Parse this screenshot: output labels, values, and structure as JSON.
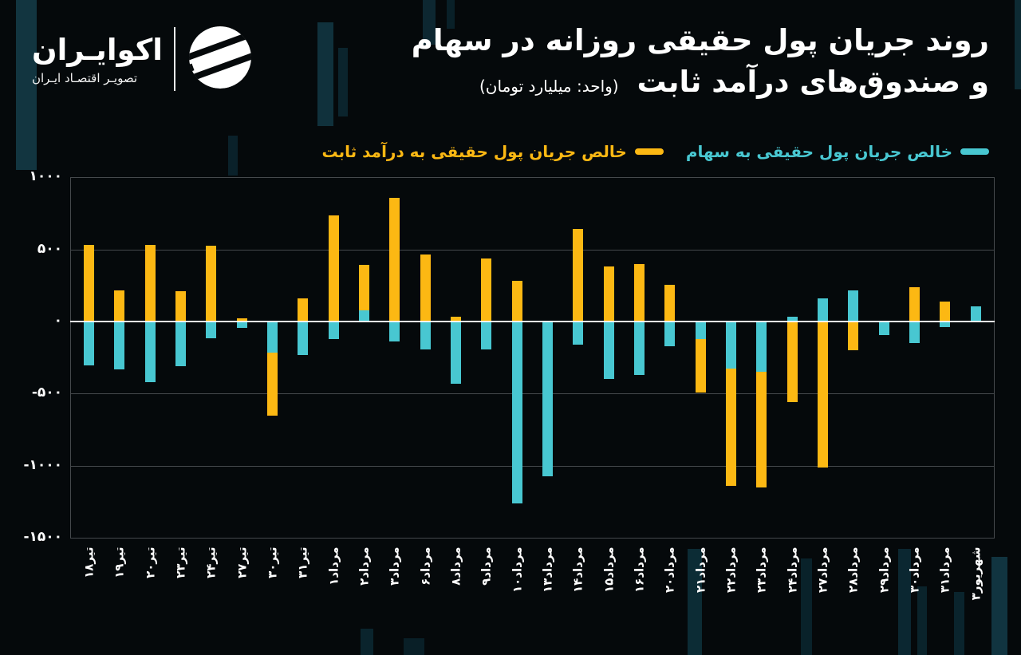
{
  "brand": {
    "name": "اکوایـران",
    "tagline": "تصویـر اقتصـاد ایـران"
  },
  "title": {
    "line1": "روند جریان پول حقیقی روزانه در سهام",
    "line2": "و صندوق‌های درآمد ثابت",
    "unit": "(واحد: میلیارد تومان)"
  },
  "legend": [
    {
      "label": "خالص جریان پول حقیقی به سهام",
      "color": "#48c7d1"
    },
    {
      "label": "خالص جریان پول حقیقی به درآمد ثابت",
      "color": "#fcb813"
    }
  ],
  "chart_data": {
    "type": "bar",
    "title": "روند جریان پول حقیقی روزانه در سهام و صندوق‌های درآمد ثابت",
    "unit": "میلیارد تومان",
    "categories": [
      "تیر۱۸",
      "تیر۱۹",
      "تیر۲۰",
      "تیر۲۳",
      "تیر۲۴",
      "تیر۲۷",
      "تیر۳۰",
      "تیر۳۱",
      "مرداد۱",
      "مرداد۲",
      "مرداد۳",
      "مرداد۶",
      "مرداد۸",
      "مرداد۹",
      "مرداد۱۰",
      "مرداد۱۳",
      "مرداد۱۴",
      "مرداد۱۵",
      "مرداد۱۶",
      "مرداد۲۰",
      "مرداد۲۱",
      "مرداد۲۲",
      "مرداد۲۳",
      "مرداد۲۴",
      "مرداد۲۷",
      "مرداد۲۸",
      "مرداد۲۹",
      "مرداد۳۰",
      "مرداد۳۱",
      "شهریور۳"
    ],
    "series": [
      {
        "key": "fixed-income",
        "name": "خالص جریان پول حقیقی به درآمد ثابت",
        "color": "#fcb813",
        "values": [
          530,
          215,
          530,
          210,
          525,
          20,
          -650,
          160,
          735,
          395,
          860,
          465,
          35,
          435,
          280,
          0,
          640,
          380,
          400,
          255,
          -495,
          -1140,
          -1150,
          -560,
          -1010,
          -200,
          0,
          240,
          140,
          0
        ]
      },
      {
        "key": "stocks",
        "name": "خالص جریان پول حقیقی به سهام",
        "color": "#48c7d1",
        "values": [
          -305,
          -330,
          -420,
          -310,
          -115,
          -45,
          -215,
          -230,
          -120,
          80,
          -140,
          -195,
          -430,
          -195,
          -1260,
          -1075,
          -160,
          -400,
          -370,
          -170,
          -120,
          -325,
          -350,
          35,
          160,
          215,
          -95,
          -150,
          -40,
          105
        ]
      }
    ],
    "ylim": [
      -1500,
      1000
    ],
    "yticks": [
      {
        "label": "۱۰۰۰",
        "value": 1000
      },
      {
        "label": "۵۰۰",
        "value": 500
      },
      {
        "label": "۰",
        "value": 0
      },
      {
        "label": "-۵۰۰",
        "value": -500
      },
      {
        "label": "-۱۰۰۰",
        "value": -1000
      },
      {
        "label": "-۱۵۰۰",
        "value": -1500
      }
    ],
    "grid": "horizontal",
    "zero_line_color": "#f3f6f6",
    "legend_position": "top-right",
    "tick_label_rotation": 90
  }
}
